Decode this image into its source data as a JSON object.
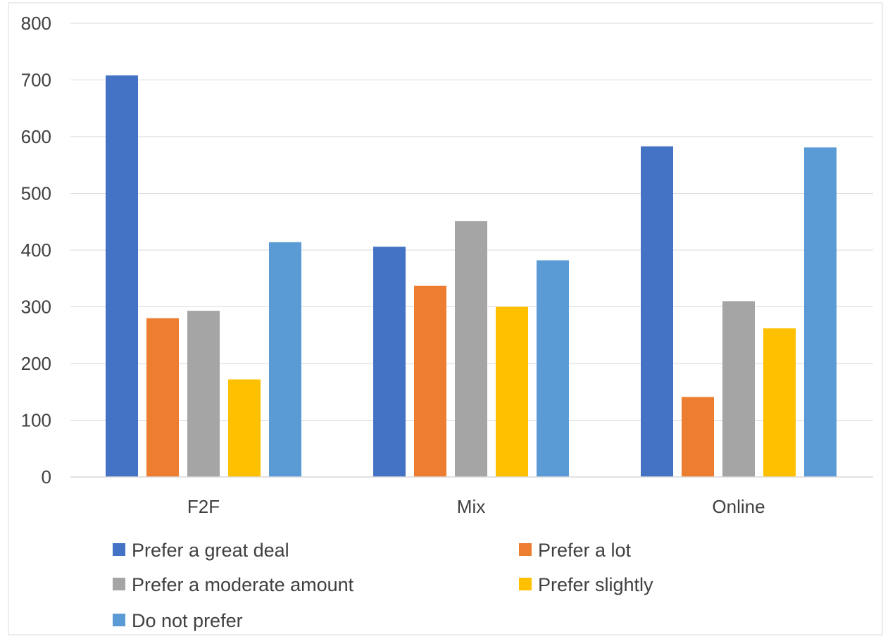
{
  "chart_data": {
    "type": "bar",
    "categories": [
      "F2F",
      "Mix",
      "Online"
    ],
    "series": [
      {
        "name": "Prefer a great deal",
        "color": "#4472C4",
        "values": [
          708,
          406,
          583
        ]
      },
      {
        "name": "Prefer a lot",
        "color": "#ED7D31",
        "values": [
          280,
          337,
          141
        ]
      },
      {
        "name": "Prefer a moderate amount",
        "color": "#A5A5A5",
        "values": [
          293,
          451,
          310
        ]
      },
      {
        "name": "Prefer slightly",
        "color": "#FFC000",
        "values": [
          172,
          300,
          262
        ]
      },
      {
        "name": "Do not prefer",
        "color": "#5B9BD5",
        "values": [
          414,
          382,
          581
        ]
      }
    ],
    "y_ticks": [
      "0",
      "100",
      "200",
      "300",
      "400",
      "500",
      "600",
      "700",
      "800"
    ],
    "ylim": [
      0,
      800
    ],
    "grid": true,
    "legend_position": "bottom"
  }
}
